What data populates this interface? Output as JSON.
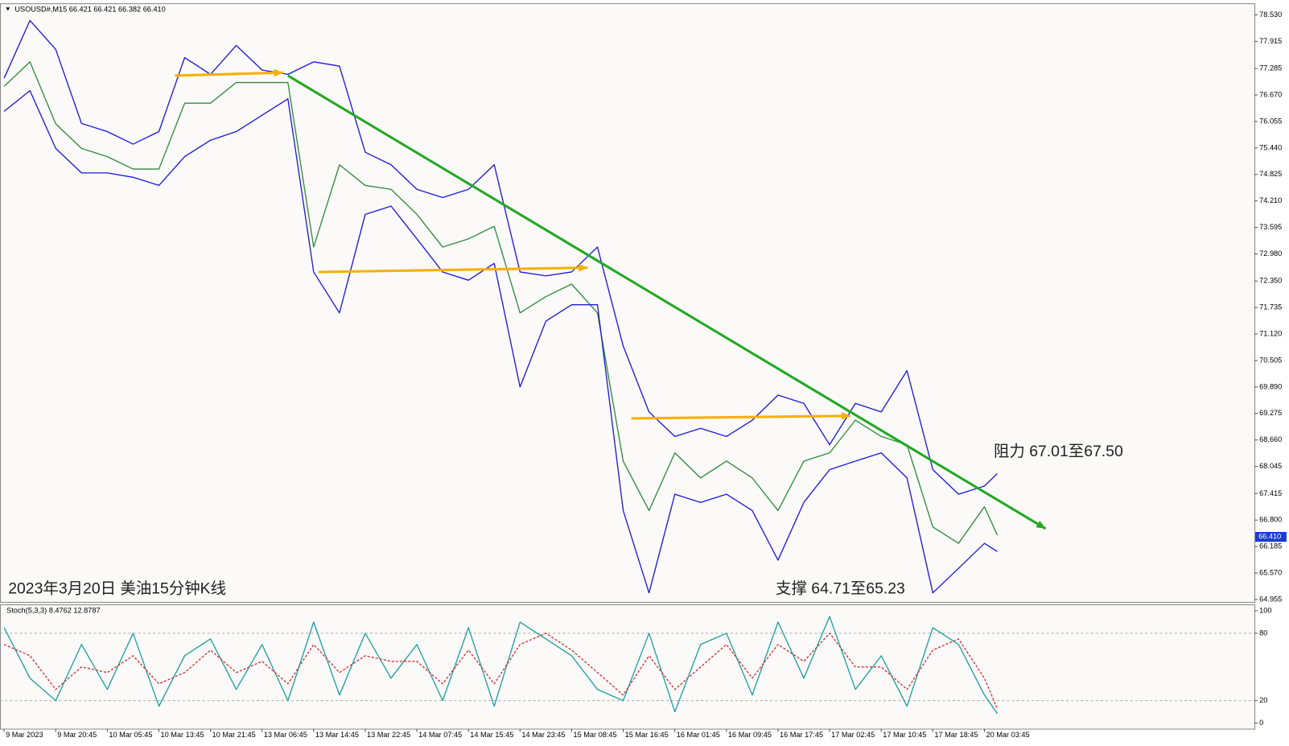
{
  "header": "USOUSD#,M15  66.421 66.421 66.382 66.410",
  "chart_data": [
    {
      "type": "line",
      "annotations": [
        "阻力 67.01至67.50",
        "支撑 64.71至65.23",
        "2023年3月20日 美油15分钟K线"
      ],
      "x": [
        0,
        16,
        32,
        48,
        64,
        80,
        96,
        112,
        128,
        144,
        160,
        176,
        192,
        208,
        224,
        240,
        256,
        272,
        288,
        304,
        320,
        336,
        352,
        368,
        384,
        400,
        416,
        432,
        448,
        464,
        480,
        496,
        512,
        528,
        544,
        560,
        576,
        592,
        608,
        616
      ],
      "xlim": [
        -2.55,
        775.5
      ],
      "ylim": [
        64.9,
        78.78
      ],
      "yticks": [
        {
          "value": 78.53,
          "label": "78.530"
        },
        77.915,
        77.285,
        {
          "value": 76.67,
          "label": "76.670"
        },
        76.055,
        {
          "value": 75.44,
          "label": "75.440"
        },
        74.825,
        {
          "value": 74.21,
          "label": "74.210"
        },
        73.595,
        {
          "value": 72.98,
          "label": "72.980"
        },
        {
          "value": 72.35,
          "label": "72.350"
        },
        71.735,
        {
          "value": 71.12,
          "label": "71.120"
        },
        70.505,
        {
          "value": 69.89,
          "label": "69.890"
        },
        69.275,
        {
          "value": 68.66,
          "label": "68.660"
        },
        68.045,
        67.415,
        {
          "value": 66.8,
          "label": "66.800"
        },
        66.185,
        {
          "value": 65.57,
          "label": "65.570"
        },
        64.955
      ],
      "last_price": {
        "value": 66.41,
        "label": "66.410"
      },
      "series": [
        {
          "color": "#2e8b3a",
          "values": [
            76.87,
            77.44,
            76.0,
            75.43,
            75.24,
            74.95,
            74.95,
            76.48,
            76.48,
            76.96,
            76.96,
            76.96,
            73.14,
            75.05,
            74.57,
            74.48,
            73.9,
            73.14,
            73.33,
            73.62,
            71.61,
            71.99,
            72.28,
            71.61,
            68.17,
            67.02,
            68.36,
            67.78,
            68.17,
            67.78,
            67.02,
            68.17,
            68.36,
            69.12,
            68.74,
            68.55,
            66.64,
            66.26,
            67.11,
            66.45
          ]
        },
        {
          "color": "#1a1ad8",
          "values": [
            77.06,
            78.4,
            77.73,
            76.01,
            75.82,
            75.53,
            75.82,
            77.54,
            77.15,
            77.82,
            77.25,
            77.15,
            77.44,
            77.34,
            75.34,
            75.05,
            74.48,
            74.29,
            74.48,
            75.05,
            72.56,
            72.47,
            72.56,
            73.14,
            70.84,
            69.31,
            68.74,
            68.93,
            68.74,
            69.12,
            69.7,
            69.51,
            68.55,
            69.51,
            69.31,
            70.27,
            67.97,
            67.4,
            67.59,
            67.88
          ]
        },
        {
          "color": "#1a1ad8",
          "values": [
            76.29,
            76.77,
            75.43,
            74.86,
            74.86,
            74.76,
            74.57,
            75.24,
            75.62,
            75.82,
            76.2,
            76.58,
            72.56,
            71.61,
            73.9,
            74.09,
            73.33,
            72.56,
            72.37,
            72.76,
            69.89,
            71.42,
            71.8,
            71.8,
            67.02,
            65.11,
            67.4,
            67.21,
            67.4,
            67.02,
            65.87,
            67.21,
            67.97,
            68.17,
            68.36,
            67.78,
            65.11,
            65.68,
            66.26,
            66.07
          ]
        }
      ],
      "trendlines": [
        {
          "color": "#22a822",
          "x": [
            176,
            646
          ],
          "values": [
            77.12,
            66.6
          ]
        },
        {
          "color": "#f5b000",
          "x": [
            106,
            173
          ],
          "values": [
            77.12,
            77.19
          ]
        },
        {
          "color": "#f5b000",
          "x": [
            195,
            362
          ],
          "values": [
            72.56,
            72.66
          ]
        },
        {
          "color": "#f5b000",
          "x": [
            389,
            525
          ],
          "values": [
            69.16,
            69.22
          ]
        }
      ]
    },
    {
      "type": "line",
      "title": "Stoch(5,3,3) 8.4762 12.8787",
      "x": [
        0,
        16,
        32,
        48,
        64,
        80,
        96,
        112,
        128,
        144,
        160,
        176,
        192,
        208,
        224,
        240,
        256,
        272,
        288,
        304,
        320,
        336,
        352,
        368,
        384,
        400,
        416,
        432,
        448,
        464,
        480,
        496,
        512,
        528,
        544,
        560,
        576,
        592,
        608,
        616
      ],
      "xlim": [
        -2.55,
        775.5
      ],
      "xticks": [
        {
          "value": 0,
          "label": "9 Mar 2023"
        },
        {
          "value": 32,
          "label": "9 Mar 20:45"
        },
        {
          "value": 64,
          "label": "10 Mar 05:45"
        },
        {
          "value": 96,
          "label": "10 Mar 13:45"
        },
        {
          "value": 128,
          "label": "10 Mar 21:45"
        },
        {
          "value": 160,
          "label": "13 Mar 06:45"
        },
        {
          "value": 192,
          "label": "13 Mar 14:45"
        },
        {
          "value": 224,
          "label": "13 Mar 22:45"
        },
        {
          "value": 256,
          "label": "14 Mar 07:45"
        },
        {
          "value": 288,
          "label": "14 Mar 15:45"
        },
        {
          "value": 320,
          "label": "14 Mar 23:45"
        },
        {
          "value": 352,
          "label": "15 Mar 08:45"
        },
        {
          "value": 384,
          "label": "15 Mar 16:45"
        },
        {
          "value": 416,
          "label": "16 Mar 01:45"
        },
        {
          "value": 448,
          "label": "16 Mar 09:45"
        },
        {
          "value": 480,
          "label": "16 Mar 17:45"
        },
        {
          "value": 512,
          "label": "17 Mar 02:45"
        },
        {
          "value": 544,
          "label": "17 Mar 10:45"
        },
        {
          "value": 576,
          "label": "17 Mar 18:45"
        },
        {
          "value": 608,
          "label": "20 Mar 03:45"
        }
      ],
      "ylim": [
        -5,
        105
      ],
      "yticks": [
        0,
        20,
        80,
        100
      ],
      "grid": true,
      "series": [
        {
          "color": "#1aa0a0",
          "values": [
            85,
            40,
            20,
            70,
            30,
            80,
            15,
            60,
            75,
            30,
            70,
            20,
            90,
            25,
            80,
            40,
            70,
            20,
            85,
            15,
            90,
            75,
            60,
            30,
            20,
            80,
            10,
            70,
            80,
            25,
            90,
            40,
            95,
            30,
            60,
            15,
            85,
            70,
            25,
            8.4762
          ]
        },
        {
          "color": "#d03030",
          "dash": true,
          "values": [
            70,
            60,
            30,
            50,
            45,
            60,
            35,
            45,
            65,
            45,
            55,
            35,
            70,
            45,
            60,
            55,
            55,
            35,
            65,
            35,
            70,
            80,
            65,
            45,
            25,
            60,
            30,
            50,
            70,
            40,
            70,
            55,
            80,
            50,
            50,
            30,
            65,
            75,
            40,
            12.8787
          ]
        }
      ]
    }
  ]
}
